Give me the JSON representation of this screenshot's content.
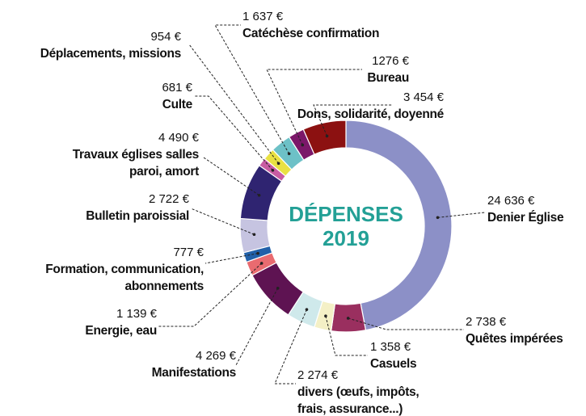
{
  "chart_data": {
    "type": "donut",
    "title": "DÉPENSES 2019",
    "categories": [
      "Denier Église",
      "Quêtes impérées",
      "Casuels",
      "divers (œufs, impôts, frais, assurance...)",
      "Manifestations",
      "Energie, eau",
      "Formation, communication, abonnements",
      "Bulletin paroissial",
      "Travaux églises salles paroi, amort",
      "Culte",
      "Déplacements, missions",
      "Catéchèse confirmation",
      "Bureau",
      "Dons, solidarité, doyenné"
    ],
    "values": [
      24636,
      2738,
      1358,
      2274,
      4269,
      1139,
      777,
      2722,
      4490,
      681,
      954,
      1637,
      1276,
      3454
    ],
    "value_labels": [
      "24 636 €",
      "2 738 €",
      "1 358 €",
      "2 274 €",
      "4 269 €",
      "1 139 €",
      "777 €",
      "2 722 €",
      "4 490 €",
      "681 €",
      "954 €",
      "1 637 €",
      "1276 €",
      "3 454 €"
    ],
    "colors": [
      "#8c90c7",
      "#9a2f5f",
      "#f4f0c6",
      "#cfe9eb",
      "#5e1352",
      "#e96b70",
      "#2160a9",
      "#c6c4e1",
      "#2f2471",
      "#c85ba2",
      "#e9e142",
      "#6dc1c7",
      "#7b1769",
      "#8c1111"
    ]
  }
}
